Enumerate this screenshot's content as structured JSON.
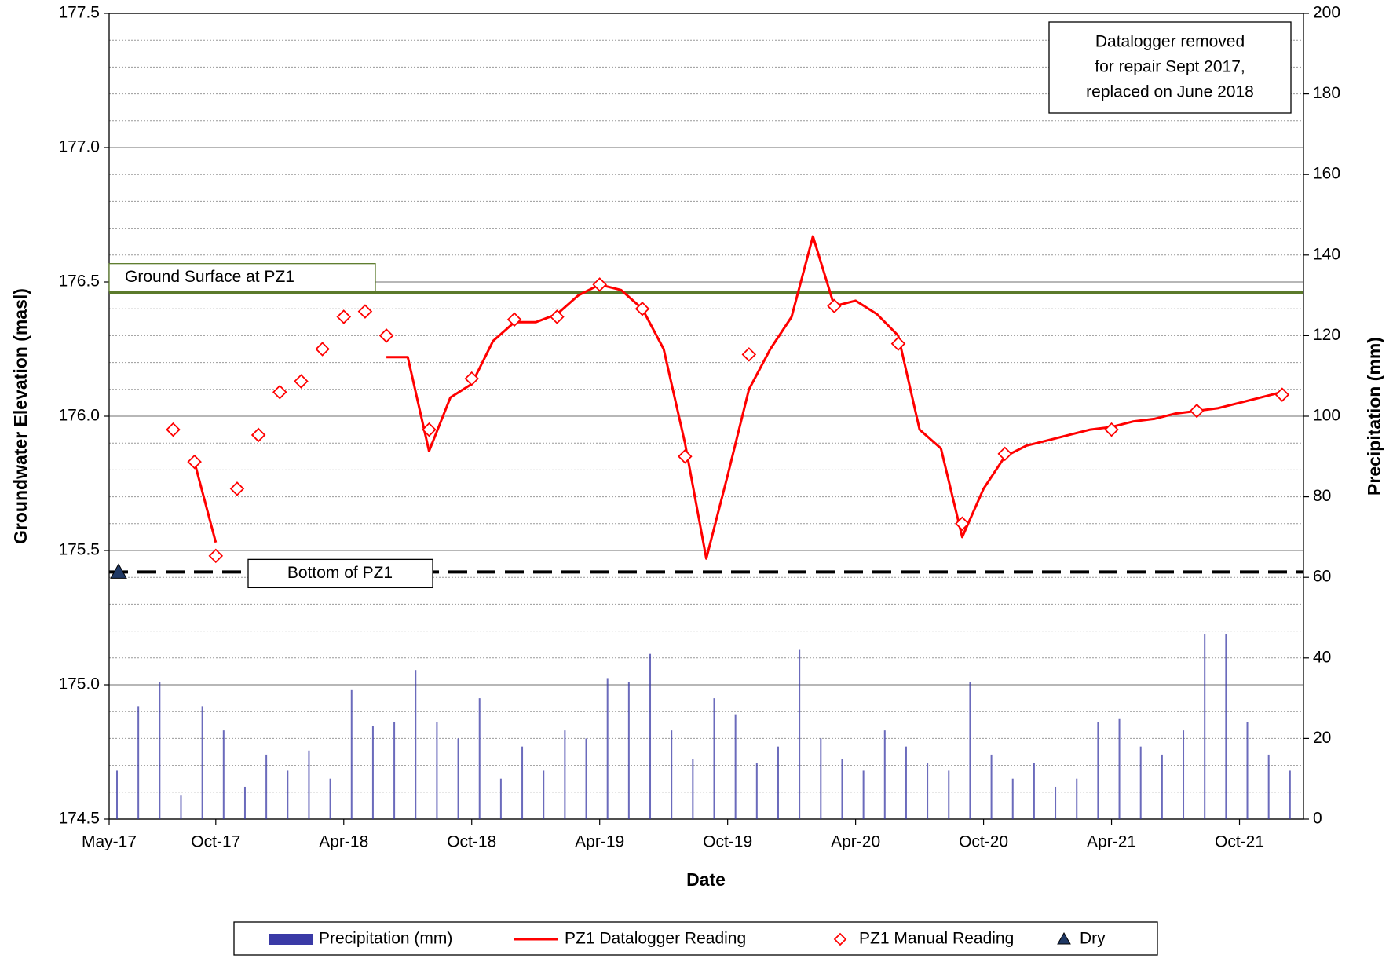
{
  "chart_data": {
    "type": "line",
    "xlabel": "Date",
    "ylabel": "Groundwater Elevation (masl)",
    "y2label": "Precipitation (mm)",
    "xlim": [
      "2017-05",
      "2022-01"
    ],
    "xticks": [
      {
        "value": "2017-05",
        "label": "May-17"
      },
      {
        "value": "2017-10",
        "label": "Oct-17"
      },
      {
        "value": "2018-04",
        "label": "Apr-18"
      },
      {
        "value": "2018-10",
        "label": "Oct-18"
      },
      {
        "value": "2019-04",
        "label": "Apr-19"
      },
      {
        "value": "2019-10",
        "label": "Oct-19"
      },
      {
        "value": "2020-04",
        "label": "Apr-20"
      },
      {
        "value": "2020-10",
        "label": "Oct-20"
      },
      {
        "value": "2021-04",
        "label": "Apr-21"
      },
      {
        "value": "2021-10",
        "label": "Oct-21"
      }
    ],
    "ylim": [
      174.5,
      177.5
    ],
    "yticks": [
      174.5,
      {
        "value": 175,
        "label": "175.0"
      },
      175.5,
      {
        "value": 176,
        "label": "176.0"
      },
      176.5,
      {
        "value": 177,
        "label": "177.0"
      },
      177.5
    ],
    "yminorticks": [
      174.6,
      174.7,
      174.8,
      174.9,
      175.1,
      175.2,
      175.3,
      175.4,
      175.6,
      175.7,
      175.8,
      175.9,
      176.1,
      176.2,
      176.3,
      176.4,
      176.6,
      176.7,
      176.8,
      176.9,
      177.1,
      177.2,
      177.3,
      177.4
    ],
    "y2lim": [
      0,
      200
    ],
    "y2ticks": [
      0,
      20,
      40,
      60,
      80,
      100,
      120,
      140,
      160,
      180,
      200
    ],
    "grid": true,
    "legend": "bottom",
    "series": [
      {
        "name": "Precipitation (mm)",
        "kind": "bar",
        "axis": "y2",
        "color": "#3a3aa6",
        "x": [
          "2017-05",
          "2017-06",
          "2017-07",
          "2017-08",
          "2017-09",
          "2017-10",
          "2017-11",
          "2017-12",
          "2018-01",
          "2018-02",
          "2018-03",
          "2018-04",
          "2018-05",
          "2018-06",
          "2018-07",
          "2018-08",
          "2018-09",
          "2018-10",
          "2018-11",
          "2018-12",
          "2019-01",
          "2019-02",
          "2019-03",
          "2019-04",
          "2019-05",
          "2019-06",
          "2019-07",
          "2019-08",
          "2019-09",
          "2019-10",
          "2019-11",
          "2019-12",
          "2020-01",
          "2020-02",
          "2020-03",
          "2020-04",
          "2020-05",
          "2020-06",
          "2020-07",
          "2020-08",
          "2020-09",
          "2020-10",
          "2020-11",
          "2020-12",
          "2021-01",
          "2021-02",
          "2021-03",
          "2021-04",
          "2021-05",
          "2021-06",
          "2021-07",
          "2021-08",
          "2021-09",
          "2021-10",
          "2021-11",
          "2021-12"
        ],
        "values": [
          12,
          28,
          34,
          6,
          28,
          22,
          8,
          16,
          12,
          17,
          10,
          32,
          23,
          24,
          37,
          24,
          20,
          30,
          10,
          18,
          12,
          22,
          20,
          35,
          34,
          41,
          22,
          15,
          30,
          26,
          14,
          18,
          42,
          20,
          15,
          12,
          22,
          18,
          14,
          12,
          34,
          16,
          10,
          14,
          8,
          10,
          24,
          25,
          18,
          16,
          22,
          46,
          46,
          24,
          16,
          12
        ]
      },
      {
        "name": "PZ1 Datalogger Reading",
        "kind": "line",
        "color": "#ff0000",
        "x": [
          "2017-09",
          "2017-10",
          "2017-11",
          "2018-06",
          "2018-07",
          "2018-08",
          "2018-09",
          "2018-10",
          "2018-11",
          "2018-12",
          "2019-01",
          "2019-02",
          "2019-03",
          "2019-04",
          "2019-05",
          "2019-06",
          "2019-07",
          "2019-08",
          "2019-09",
          "2019-10",
          "2019-11",
          "2019-12",
          "2020-01",
          "2020-02",
          "2020-03",
          "2020-04",
          "2020-05",
          "2020-06",
          "2020-07",
          "2020-08",
          "2020-09",
          "2020-10",
          "2020-11",
          "2020-12",
          "2021-01",
          "2021-02",
          "2021-03",
          "2021-04",
          "2021-05",
          "2021-06",
          "2021-07",
          "2021-08",
          "2021-09",
          "2021-10",
          "2021-11",
          "2021-12"
        ],
        "values": [
          175.83,
          175.53,
          null,
          176.22,
          176.22,
          175.87,
          176.07,
          176.12,
          176.28,
          176.35,
          176.35,
          176.38,
          176.45,
          176.49,
          176.47,
          176.4,
          176.25,
          175.9,
          175.47,
          175.78,
          176.1,
          176.25,
          176.37,
          176.67,
          176.41,
          176.43,
          176.38,
          176.3,
          175.95,
          175.88,
          175.55,
          175.73,
          175.85,
          175.89,
          175.91,
          175.93,
          175.95,
          175.96,
          175.98,
          175.99,
          176.01,
          176.02,
          176.03,
          176.05,
          176.07,
          176.09
        ]
      },
      {
        "name": "PZ1 Manual Reading",
        "kind": "diamond",
        "color": "#ff0000",
        "x": [
          "2017-08",
          "2017-09",
          "2017-10",
          "2017-11",
          "2017-12",
          "2018-01",
          "2018-02",
          "2018-03",
          "2018-04",
          "2018-05",
          "2018-06",
          "2018-08",
          "2018-10",
          "2018-12",
          "2019-02",
          "2019-04",
          "2019-06",
          "2019-08",
          "2019-11",
          "2020-03",
          "2020-06",
          "2020-09",
          "2020-11",
          "2021-04",
          "2021-08",
          "2021-12"
        ],
        "values": [
          175.95,
          175.83,
          175.48,
          175.73,
          175.93,
          176.09,
          176.13,
          176.25,
          176.37,
          176.39,
          176.3,
          175.95,
          176.14,
          176.36,
          176.37,
          176.49,
          176.4,
          175.85,
          176.23,
          176.41,
          176.27,
          175.6,
          175.86,
          175.95,
          176.02,
          176.08
        ]
      },
      {
        "name": "Dry",
        "kind": "triangle",
        "color": "#1f3864",
        "x": [
          "2017-05"
        ],
        "values": [
          175.42
        ]
      }
    ],
    "reference_lines": [
      {
        "label": "Ground Surface at PZ1",
        "value": 176.46,
        "color": "#5b7a2b",
        "style": "solid"
      },
      {
        "label": "Bottom of PZ1",
        "value": 175.42,
        "color": "#000000",
        "style": "dashed"
      }
    ],
    "annotation": [
      "Datalogger removed",
      "for repair Sept 2017,",
      "replaced on June 2018"
    ]
  }
}
